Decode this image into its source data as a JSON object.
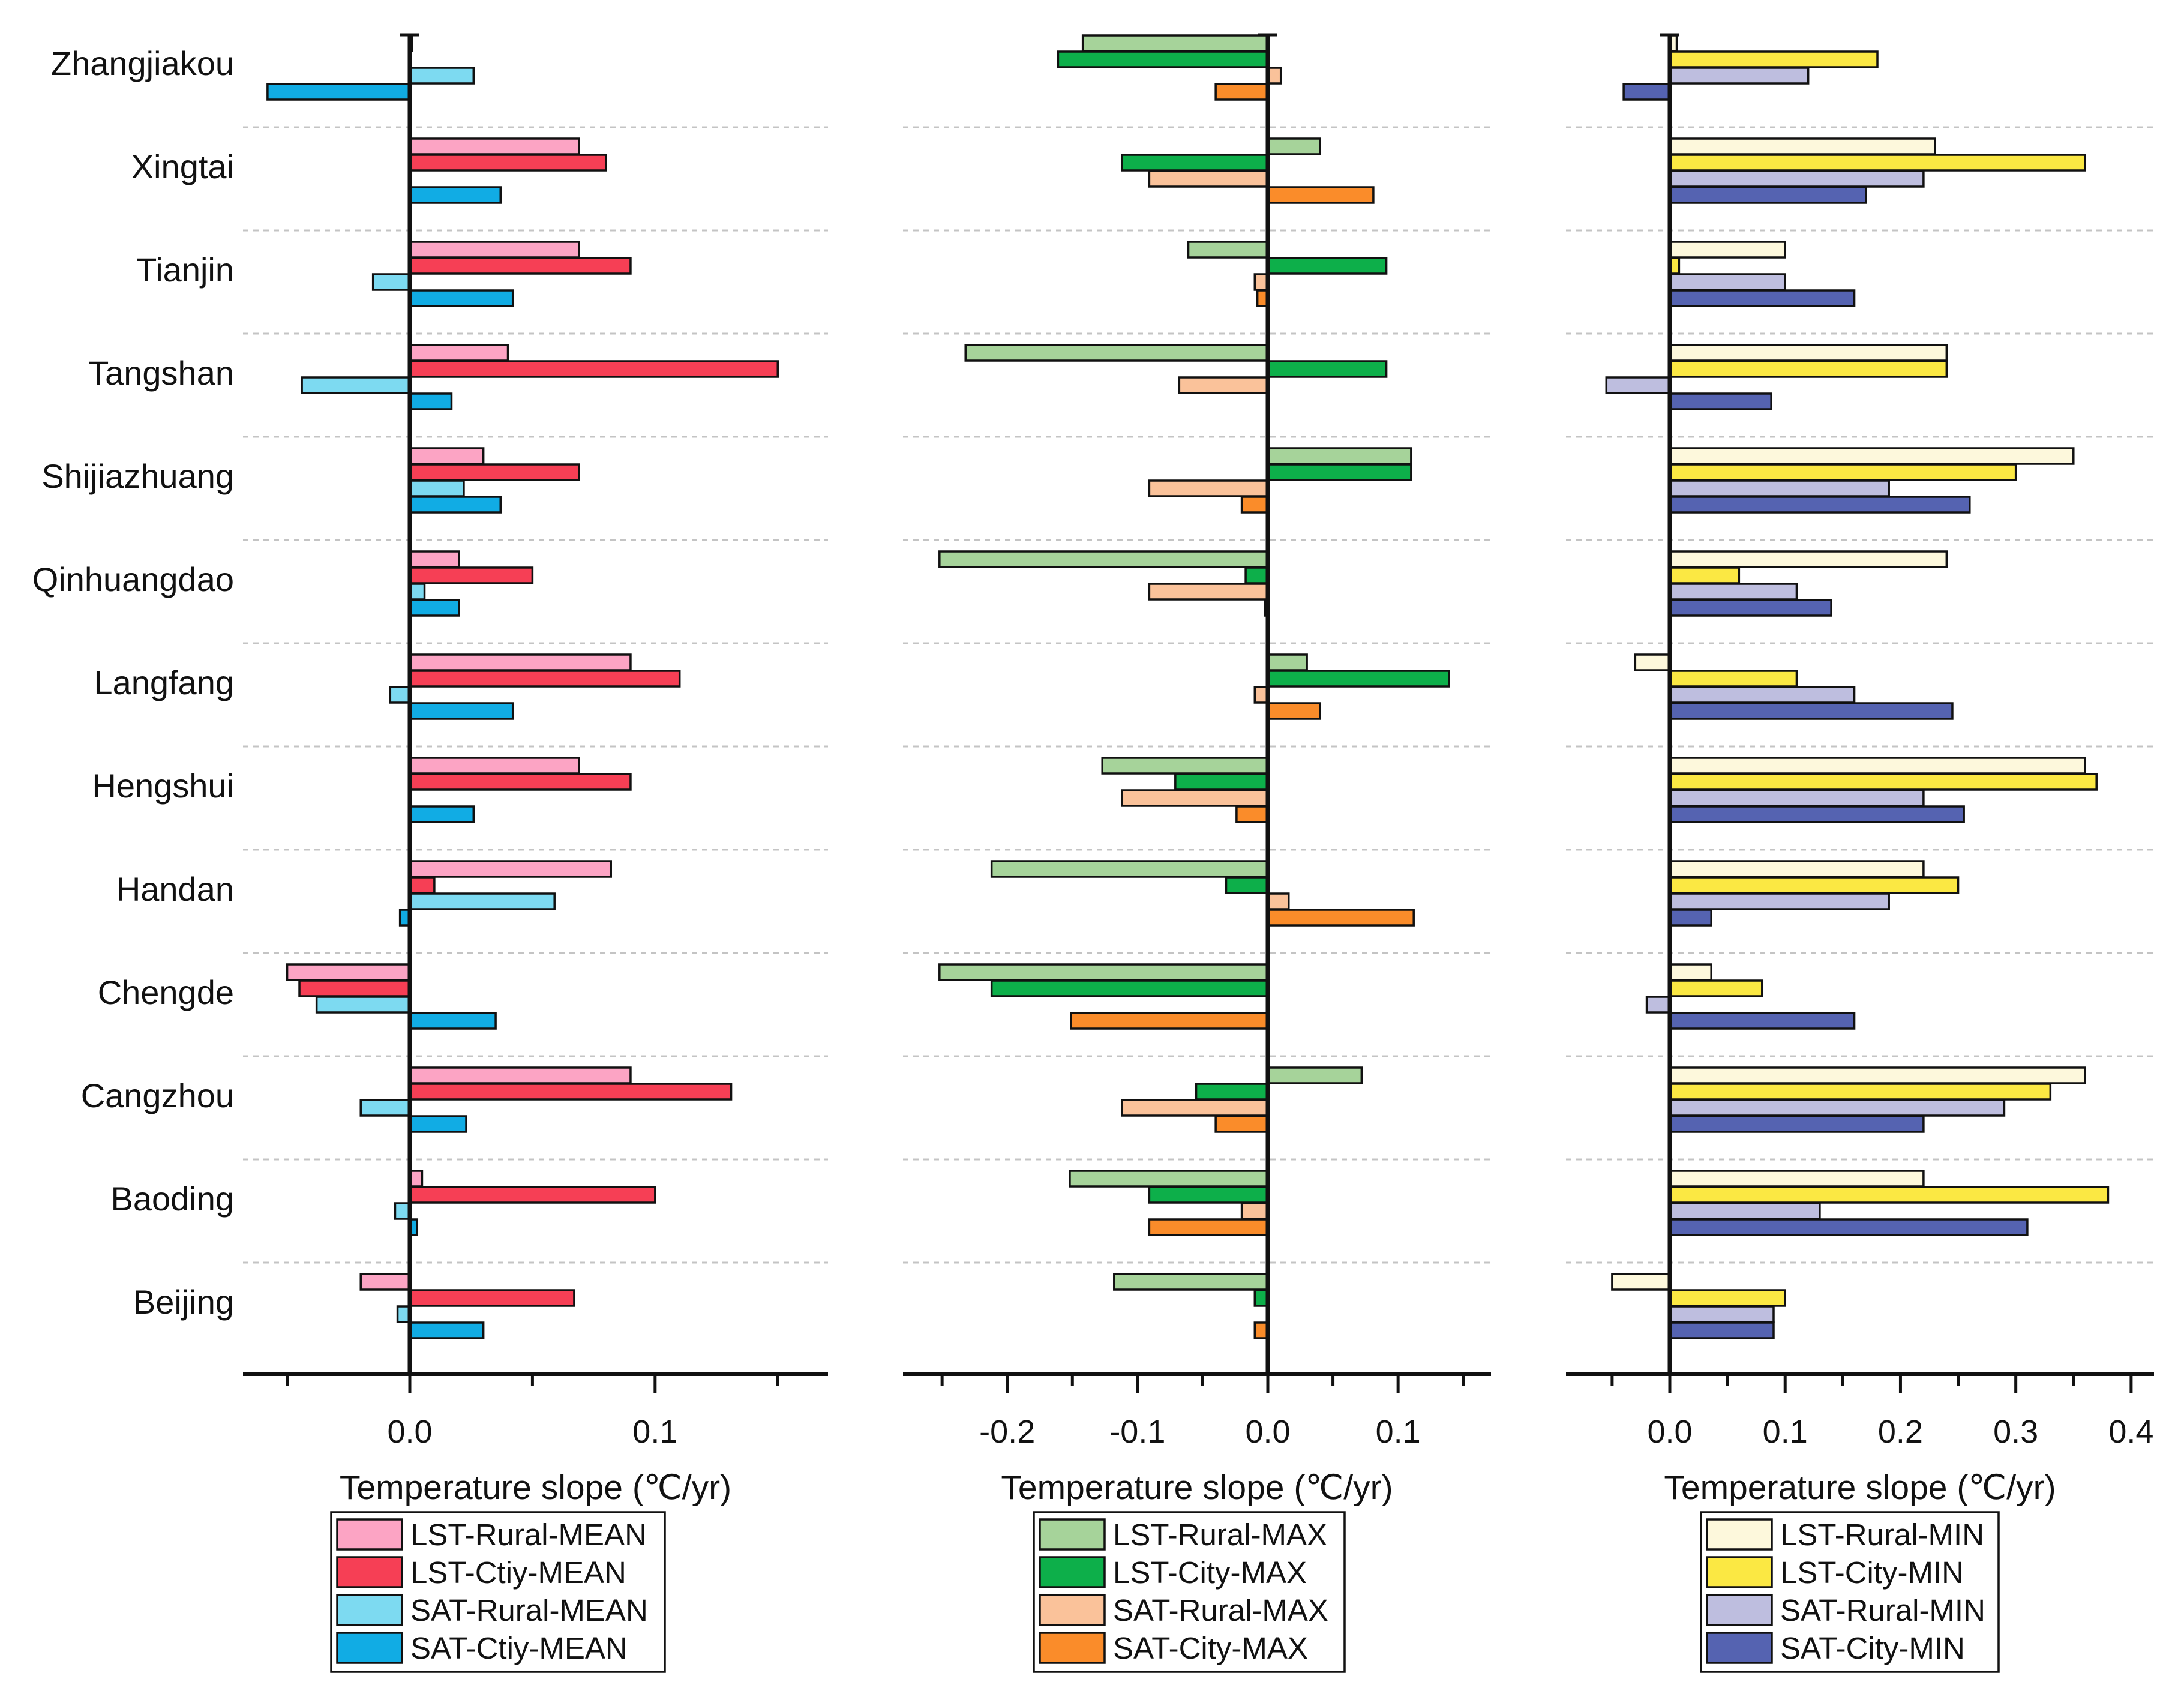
{
  "chart_data": [
    {
      "type": "bar",
      "orientation": "horizontal",
      "panel": "MEAN",
      "categories": [
        "Zhangjiakou",
        "Xingtai",
        "Tianjin",
        "Tangshan",
        "Shijiazhuang",
        "Qinhuangdao",
        "Langfang",
        "Hengshui",
        "Handan",
        "Chengde",
        "Cangzhou",
        "Baoding",
        "Beijing"
      ],
      "xlabel": "Temperature slope (℃/yr)",
      "xlim": [
        -0.068,
        0.17
      ],
      "xticks": [
        0.0,
        0.1
      ],
      "tick_labels": [
        "0.0",
        "0.1"
      ],
      "grid": "dashed separators between categories",
      "legend_position": "bottom",
      "series": [
        {
          "name": "LST-Rural-MEAN",
          "color": "#FCA4C4",
          "values": [
            0.001,
            0.069,
            0.069,
            0.04,
            0.03,
            0.02,
            0.09,
            0.069,
            0.082,
            -0.05,
            0.09,
            0.005,
            -0.02
          ]
        },
        {
          "name": "LST-Ctiy-MEAN",
          "color": "#F63F55",
          "values": [
            0.0,
            0.08,
            0.09,
            0.15,
            0.069,
            0.05,
            0.11,
            0.09,
            0.01,
            -0.045,
            0.131,
            0.1,
            0.067
          ]
        },
        {
          "name": "SAT-Rural-MEAN",
          "color": "#7DDAF1",
          "values": [
            0.026,
            0.0,
            -0.015,
            -0.044,
            0.022,
            0.006,
            -0.008,
            0.0,
            0.059,
            -0.038,
            -0.02,
            -0.006,
            -0.005
          ]
        },
        {
          "name": "SAT-Ctiy-MEAN",
          "color": "#11ACE4",
          "values": [
            -0.058,
            0.037,
            0.042,
            0.017,
            0.037,
            0.02,
            0.042,
            0.026,
            -0.004,
            0.035,
            0.023,
            0.003,
            0.03
          ]
        }
      ]
    },
    {
      "type": "bar",
      "orientation": "horizontal",
      "panel": "MAX",
      "categories": [
        "Zhangjiakou",
        "Xingtai",
        "Tianjin",
        "Tangshan",
        "Shijiazhuang",
        "Qinhuangdao",
        "Langfang",
        "Hengshui",
        "Handan",
        "Chengde",
        "Cangzhou",
        "Baoding",
        "Beijing"
      ],
      "xlabel": "Temperature slope (℃/yr)",
      "xlim": [
        -0.28,
        0.17
      ],
      "xticks": [
        -0.2,
        -0.1,
        0.0,
        0.1
      ],
      "tick_labels": [
        "-0.2",
        "-0.1",
        "0.0",
        "0.1"
      ],
      "grid": "dashed separators between categories",
      "legend_position": "bottom",
      "series": [
        {
          "name": "LST-Rural-MAX",
          "color": "#A6D39A",
          "values": [
            -0.142,
            0.04,
            -0.061,
            -0.232,
            0.11,
            -0.252,
            0.03,
            -0.127,
            -0.212,
            -0.252,
            0.072,
            -0.152,
            -0.118
          ]
        },
        {
          "name": "LST-City-MAX",
          "color": "#0DAF4A",
          "values": [
            -0.161,
            -0.112,
            0.091,
            0.091,
            0.11,
            -0.017,
            0.139,
            -0.071,
            -0.032,
            -0.212,
            -0.055,
            -0.091,
            -0.01
          ]
        },
        {
          "name": "SAT-Rural-MAX",
          "color": "#FAC29A",
          "values": [
            0.01,
            -0.091,
            -0.01,
            -0.068,
            -0.091,
            -0.091,
            -0.01,
            -0.112,
            0.016,
            0.0,
            -0.112,
            -0.02,
            0.0
          ]
        },
        {
          "name": "SAT-City-MAX",
          "color": "#FA8C2A",
          "values": [
            -0.04,
            0.081,
            -0.008,
            0.0,
            -0.02,
            -0.002,
            0.04,
            -0.024,
            0.112,
            -0.151,
            -0.04,
            -0.091,
            -0.01
          ]
        }
      ]
    },
    {
      "type": "bar",
      "orientation": "horizontal",
      "panel": "MIN",
      "categories": [
        "Zhangjiakou",
        "Xingtai",
        "Tianjin",
        "Tangshan",
        "Shijiazhuang",
        "Qinhuangdao",
        "Langfang",
        "Hengshui",
        "Handan",
        "Chengde",
        "Cangzhou",
        "Baoding",
        "Beijing"
      ],
      "xlabel": "Temperature slope (℃/yr)",
      "xlim": [
        -0.09,
        0.42
      ],
      "xticks": [
        0.0,
        0.1,
        0.2,
        0.3,
        0.4
      ],
      "tick_labels": [
        "0.0",
        "0.1",
        "0.2",
        "0.3",
        "0.4"
      ],
      "grid": "dashed separators between categories",
      "legend_position": "bottom",
      "series": [
        {
          "name": "LST-Rural-MIN",
          "color": "#FDF8DC",
          "values": [
            0.006,
            0.23,
            0.1,
            0.24,
            0.35,
            0.24,
            -0.03,
            0.36,
            0.22,
            0.036,
            0.36,
            0.22,
            -0.05
          ]
        },
        {
          "name": "LST-City-MIN",
          "color": "#FBE843",
          "values": [
            0.18,
            0.36,
            0.008,
            0.24,
            0.3,
            0.06,
            0.11,
            0.37,
            0.25,
            0.08,
            0.33,
            0.38,
            0.1
          ]
        },
        {
          "name": "SAT-Rural-MIN",
          "color": "#BEBEDF",
          "values": [
            0.12,
            0.22,
            0.1,
            -0.055,
            0.19,
            0.11,
            0.16,
            0.22,
            0.19,
            -0.02,
            0.29,
            0.13,
            0.09
          ]
        },
        {
          "name": "SAT-City-MIN",
          "color": "#5563B1",
          "values": [
            -0.04,
            0.17,
            0.16,
            0.088,
            0.26,
            0.14,
            0.245,
            0.255,
            0.036,
            0.16,
            0.22,
            0.31,
            0.09
          ]
        }
      ]
    }
  ]
}
